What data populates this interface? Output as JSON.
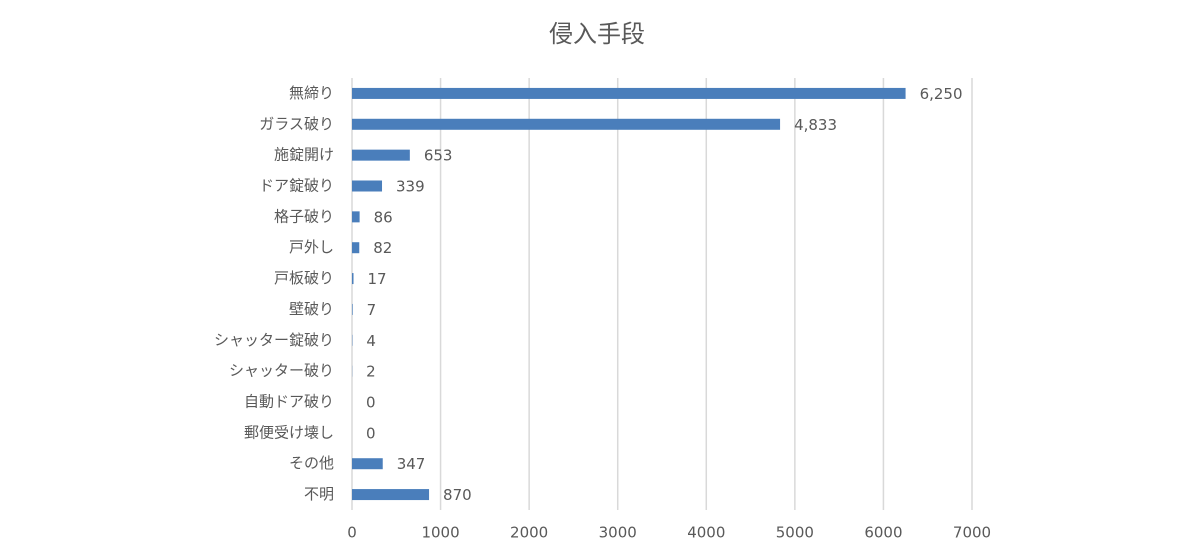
{
  "chart_data": {
    "type": "barh",
    "title": "侵入手段",
    "categories": [
      "無締り",
      "ガラス破り",
      "施錠開け",
      "ドア錠破り",
      "格子破り",
      "戸外し",
      "戸板破り",
      "壁破り",
      "シャッター錠破り",
      "シャッター破り",
      "自動ドア破り",
      "郵便受け壊し",
      "その他",
      "不明"
    ],
    "values": [
      6250,
      4833,
      653,
      339,
      86,
      82,
      17,
      7,
      4,
      2,
      0,
      0,
      347,
      870
    ],
    "value_labels": [
      "6,250",
      "4,833",
      "653",
      "339",
      "86",
      "82",
      "17",
      "7",
      "4",
      "2",
      "0",
      "0",
      "347",
      "870"
    ],
    "color": "#4a7ebb",
    "xlim": [
      0,
      7000
    ],
    "xticks": [
      0,
      1000,
      2000,
      3000,
      4000,
      5000,
      6000,
      7000
    ],
    "grid": true
  }
}
